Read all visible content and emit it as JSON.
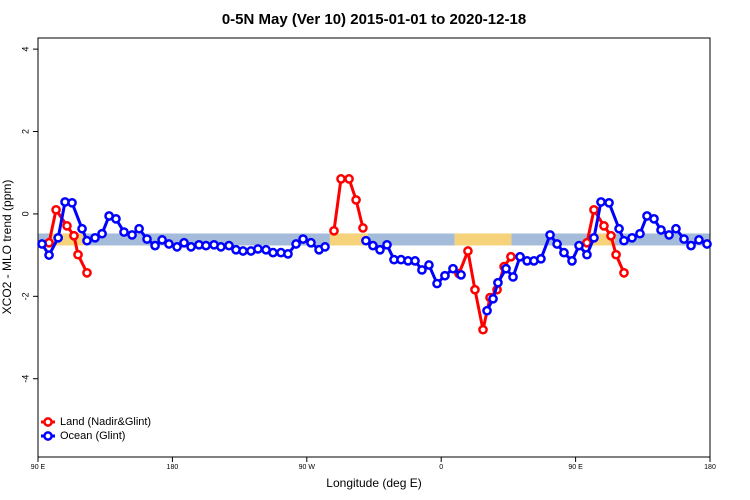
{
  "chart_data": {
    "type": "line",
    "title": "0-5N May (Ver 10)   2015-01-01 to 2020-12-18",
    "x_label": "Longitude (deg E)",
    "y_label": "XCO2 - MLO trend (ppm)",
    "xlim": [
      90,
      540
    ],
    "ylim": [
      -5.9,
      4.27
    ],
    "xticks": [
      {
        "value": 90,
        "label": "90 E"
      },
      {
        "value": 180,
        "label": "180"
      },
      {
        "value": 270,
        "label": "90 W"
      },
      {
        "value": 360,
        "label": "0"
      },
      {
        "value": 450,
        "label": "90 E"
      },
      {
        "value": 540,
        "label": "180"
      }
    ],
    "yticks": [
      -4,
      -2,
      0,
      2,
      4
    ],
    "legend": "bottom-left",
    "band": {
      "value": -0.62,
      "segments": [
        {
          "from": 90,
          "to": 99.4,
          "color": "#a4bcd9"
        },
        {
          "from": 99.4,
          "to": 121.5,
          "color": "#f6d27a"
        },
        {
          "from": 121.5,
          "to": 285.5,
          "color": "#a4bcd9"
        },
        {
          "from": 285.5,
          "to": 311,
          "color": "#f6d27a"
        },
        {
          "from": 311,
          "to": 369,
          "color": "#a4bcd9"
        },
        {
          "from": 369,
          "to": 407,
          "color": "#f6d27a"
        },
        {
          "from": 407,
          "to": 459.6,
          "color": "#a4bcd9"
        },
        {
          "from": 459.6,
          "to": 476.4,
          "color": "#f6d27a"
        },
        {
          "from": 476.4,
          "to": 540,
          "color": "#a4bcd9"
        }
      ]
    },
    "series": [
      {
        "name": "Land (Nadir&Glint)",
        "color": "#ff0000",
        "x": [
          97.4,
          102.1,
          109.4,
          114.1,
          116.8,
          122.8,
          null,
          288.2,
          292.9,
          298.3,
          303.0,
          307.6,
          null,
          371.9,
          377.9,
          382.6,
          388.0,
          392.7,
          397.4,
          402.1,
          406.7,
          null,
          457.6,
          462.3,
          469.0,
          473.7,
          477.1,
          482.4
        ],
        "values": [
          -0.7,
          0.1,
          -0.29,
          -0.53,
          -0.99,
          -1.43,
          null,
          -0.41,
          0.85,
          0.85,
          0.34,
          -0.34,
          null,
          -1.45,
          -0.9,
          -1.84,
          -2.81,
          -2.03,
          -1.84,
          -1.28,
          -1.04,
          null,
          -0.7,
          0.1,
          -0.29,
          -0.53,
          -0.99,
          -1.43
        ]
      },
      {
        "name": "Ocean (Glint)",
        "color": "#0000ff",
        "x": [
          92.7,
          97.4,
          103.5,
          108.1,
          112.8,
          119.5,
          122.8,
          128.2,
          132.9,
          137.6,
          142.2,
          147.6,
          153.0,
          157.7,
          163.0,
          168.4,
          173.1,
          177.7,
          183.1,
          187.8,
          192.5,
          197.8,
          202.5,
          207.9,
          212.5,
          217.9,
          222.6,
          227.3,
          232.6,
          237.3,
          242.7,
          247.4,
          252.7,
          257.4,
          262.8,
          267.5,
          272.8,
          278.2,
          282.2,
          null,
          309.6,
          314.3,
          319.0,
          323.7,
          328.4,
          333.1,
          337.8,
          342.5,
          347.1,
          351.8,
          357.2,
          362.5,
          367.9,
          373.3,
          null,
          390.7,
          394.7,
          398.0,
          403.4,
          408.1,
          412.8,
          417.5,
          422.1,
          426.8,
          432.9,
          437.6,
          442.2,
          447.6,
          452.3,
          457.6,
          462.3,
          467.0,
          472.4,
          479.1,
          482.4,
          487.8,
          493.1,
          497.8,
          502.5,
          507.2,
          512.6,
          517.2,
          522.6,
          527.3,
          532.6,
          538.0
        ],
        "values": [
          -0.73,
          -1.0,
          -0.58,
          0.29,
          0.27,
          -0.36,
          -0.65,
          -0.58,
          -0.48,
          -0.05,
          -0.12,
          -0.44,
          -0.51,
          -0.36,
          -0.61,
          -0.77,
          -0.63,
          -0.73,
          -0.8,
          -0.7,
          -0.8,
          -0.75,
          -0.77,
          -0.75,
          -0.8,
          -0.77,
          -0.87,
          -0.9,
          -0.9,
          -0.85,
          -0.87,
          -0.94,
          -0.94,
          -0.97,
          -0.73,
          -0.61,
          -0.7,
          -0.87,
          -0.8,
          null,
          -0.65,
          -0.77,
          -0.87,
          -0.75,
          -1.11,
          -1.11,
          -1.14,
          -1.14,
          -1.36,
          -1.24,
          -1.69,
          -1.5,
          -1.33,
          -1.48,
          null,
          -2.35,
          -2.06,
          -1.67,
          -1.33,
          -1.53,
          -1.04,
          -1.14,
          -1.14,
          -1.09,
          -0.51,
          -0.73,
          -0.94,
          -1.14,
          -0.77,
          -0.99,
          -0.58,
          0.29,
          0.27,
          -0.36,
          -0.65,
          -0.58,
          -0.48,
          -0.05,
          -0.12,
          -0.39,
          -0.51,
          -0.36,
          -0.61,
          -0.77,
          -0.63,
          -0.73
        ]
      }
    ]
  }
}
